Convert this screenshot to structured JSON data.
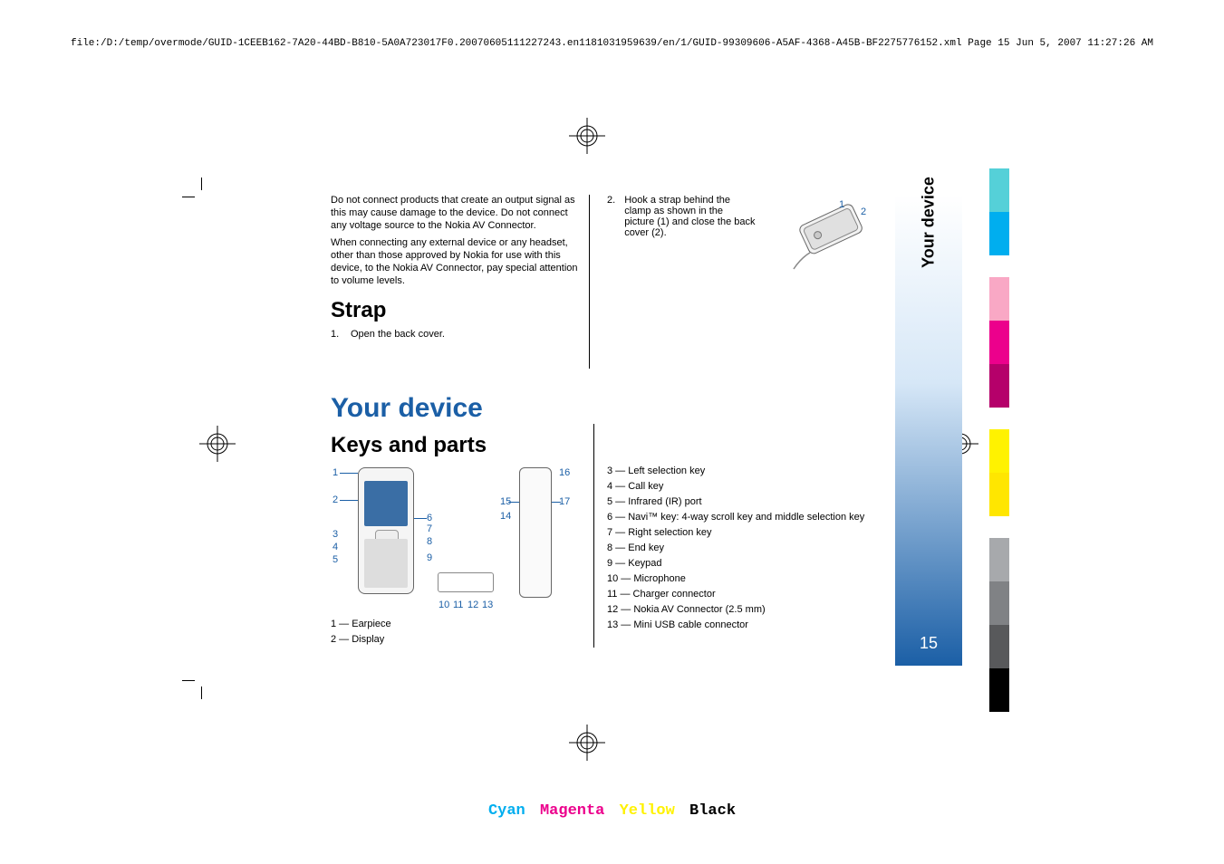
{
  "header": {
    "file_path": "file:/D:/temp/overmode/GUID-1CEEB162-7A20-44BD-B810-5A0A723017F0.20070605111227243.en1181031959639/en/1/GUID-99309606-A5AF-4368-A45B-BF2275776152.xml",
    "page_label": "Page 15",
    "timestamp": "Jun 5, 2007 11:27:26 AM"
  },
  "body": {
    "warning1": "Do not connect products that create an output signal as this may cause damage to the device. Do not connect any voltage source to the Nokia AV Connector.",
    "warning2": "When connecting any external device or any headset, other than those approved by Nokia for use with this device, to the Nokia AV Connector, pay special attention to volume levels.",
    "strap_heading": "Strap",
    "strap_step1_num": "1.",
    "strap_step1": "Open the back cover.",
    "strap_step2_num": "2.",
    "strap_step2": "Hook a strap behind the clamp as shown in the picture (1) and close the back cover (2).",
    "your_device": "Your device",
    "keys_and_parts": "Keys and parts",
    "diagram_numbers": {
      "d1": "1",
      "d2": "2",
      "d3": "3",
      "d4": "4",
      "d5": "5",
      "d6": "6",
      "d7": "7",
      "d8": "8",
      "d9": "9",
      "d10": "10",
      "d11": "11",
      "d12": "12",
      "d13": "13",
      "d14": "14",
      "d15": "15",
      "d16": "16",
      "d17": "17"
    },
    "key_items_left": [
      "1 — Earpiece",
      "2 — Display"
    ],
    "key_items_right": [
      "3 — Left selection key",
      "4 — Call key",
      "5 — Infrared (IR) port",
      "6 — Navi™ key: 4-way scroll key and middle selection key",
      "7 — Right selection key",
      "8 — End key",
      "9 — Keypad",
      "10 — Microphone",
      "11 — Charger connector",
      "12 — Nokia AV Connector (2.5 mm)",
      "13 — Mini USB cable connector"
    ],
    "strap_fig": {
      "n1": "1",
      "n2": "2"
    }
  },
  "side": {
    "tab_label": "Your device",
    "page_number": "15"
  },
  "colors": {
    "strip": [
      "#55d0d8",
      "#00aeef",
      "#f9a8c5",
      "#ec008c",
      "#b5006a",
      "#fff200",
      "#ffe600",
      "#a7a9ac",
      "#808285",
      "#58595b",
      "#000000"
    ],
    "gaps_after": [
      1,
      4,
      6
    ]
  },
  "footer": {
    "cyan": {
      "text": "Cyan",
      "color": "#00aeef"
    },
    "magenta": {
      "text": "Magenta",
      "color": "#ec008c"
    },
    "yellow": {
      "text": "Yellow",
      "color": "#fff200"
    },
    "black": {
      "text": "Black",
      "color": "#000000"
    }
  }
}
